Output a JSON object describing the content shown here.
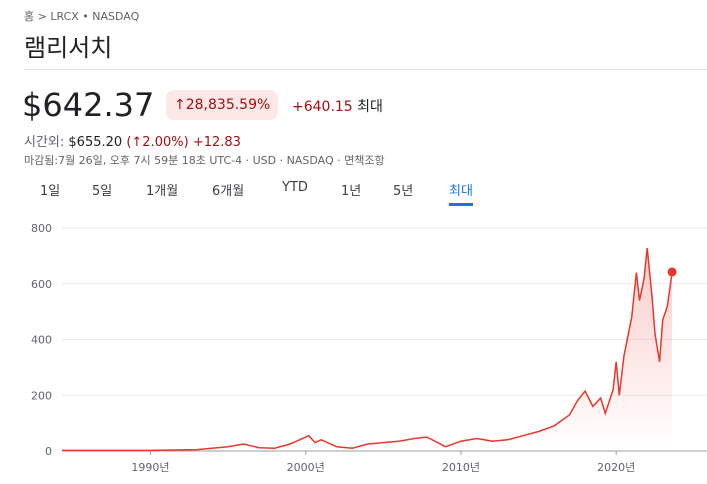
{
  "header": {
    "breadcrumb_home": "홈",
    "breadcrumb_ticker": "LRCX • NASDAQ",
    "title": "램리서치"
  },
  "quote": {
    "price": "$642.37",
    "change_pct": "28,835.59%",
    "change": "+640.15",
    "period": "최대",
    "after_label": "시간외:",
    "after_price": "$655.20",
    "after_pct_open": "(",
    "after_pct": "2.00%)",
    "after_change": "+12.83",
    "closed": "마감됨:7월 26일, 오후 7시 59분 18초 UTC-4 · USD · NASDAQ · 면책조항"
  },
  "tabs": [
    "1일",
    "5일",
    "1개월",
    "6개월",
    "YTD",
    "1년",
    "5년",
    "최대"
  ],
  "chart_data": {
    "type": "line",
    "color": "#e8372c",
    "x": [
      1984.3,
      1988,
      1990,
      1993,
      1995,
      1996,
      1997,
      1998,
      1999,
      2000.2,
      2000.6,
      2001,
      2002,
      2003,
      2004,
      2005,
      2006,
      2007,
      2007.8,
      2008.5,
      2009,
      2010,
      2011,
      2011.5,
      2012,
      2013,
      2014,
      2015,
      2016,
      2017,
      2017.5,
      2018,
      2018.5,
      2019,
      2019.3,
      2019.8,
      2020,
      2020.2,
      2020.5,
      2021,
      2021.3,
      2021.5,
      2021.8,
      2022,
      2022.3,
      2022.5,
      2022.8,
      2023,
      2023.3,
      2023.5,
      2023.6
    ],
    "values": [
      2,
      2,
      2,
      5,
      15,
      25,
      12,
      10,
      25,
      55,
      30,
      40,
      15,
      10,
      25,
      30,
      35,
      45,
      50,
      30,
      15,
      35,
      45,
      40,
      35,
      40,
      55,
      70,
      90,
      130,
      180,
      215,
      160,
      190,
      135,
      220,
      320,
      200,
      340,
      480,
      640,
      540,
      620,
      728,
      560,
      420,
      320,
      470,
      520,
      600,
      642.37
    ],
    "xlim": [
      1984.3,
      2025.4
    ],
    "ylim": [
      0,
      800
    ],
    "xticks": [
      {
        "value": 1990,
        "label": "1990년"
      },
      {
        "value": 2000,
        "label": "2000년"
      },
      {
        "value": 2010,
        "label": "2010년"
      },
      {
        "value": 2020,
        "label": "2020년"
      }
    ],
    "yticks": [
      0,
      200,
      400,
      600,
      800
    ],
    "grid": true
  }
}
